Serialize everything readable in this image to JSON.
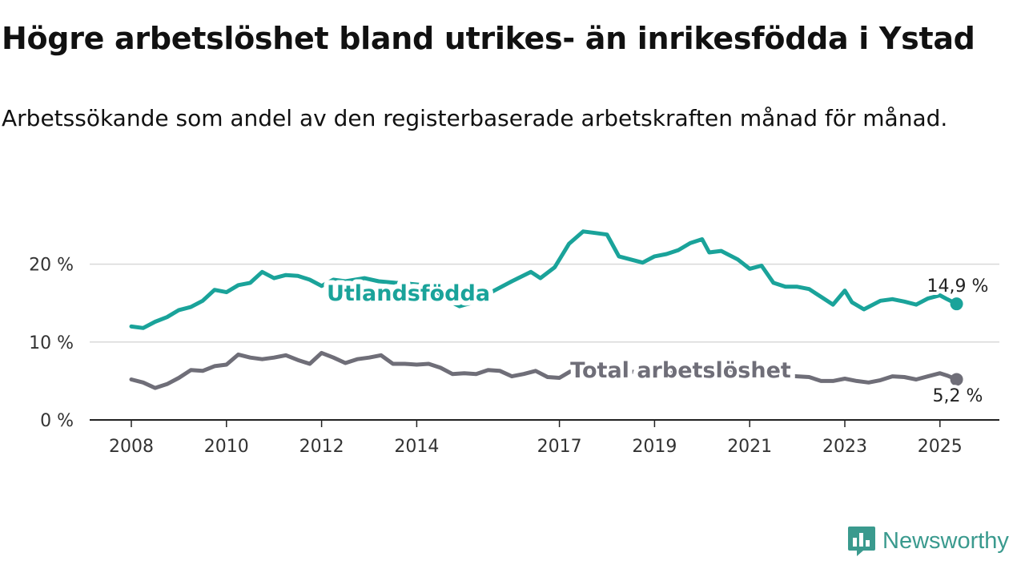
{
  "title": "Högre arbetslöshet bland utrikes- än inrikesfödda i Ystad",
  "subtitle": "Arbetssökande som andel av den registerbaserade arbetskraften månad för månad.",
  "brand": {
    "name": "Newsworthy",
    "icon": "bar-chart-speech-bubble-icon",
    "color": "#3a9a8e"
  },
  "chart_data": {
    "type": "line",
    "xlim": [
      2008,
      2025.7
    ],
    "ylim": [
      0,
      25
    ],
    "x_ticks": [
      "2008",
      "2010",
      "2012",
      "2014",
      "2017",
      "2019",
      "2021",
      "2023",
      "2025"
    ],
    "y_ticks": [
      "0 %",
      "10 %",
      "20 %"
    ],
    "grid": true,
    "series": [
      {
        "name": "Utlandsfödda",
        "color": "#1aa39a",
        "end_label": "14,9 %",
        "points": [
          [
            2008.0,
            12.0
          ],
          [
            2008.25,
            11.8
          ],
          [
            2008.5,
            12.6
          ],
          [
            2008.75,
            13.2
          ],
          [
            2009.0,
            14.1
          ],
          [
            2009.25,
            14.5
          ],
          [
            2009.5,
            15.3
          ],
          [
            2009.75,
            16.7
          ],
          [
            2010.0,
            16.4
          ],
          [
            2010.25,
            17.3
          ],
          [
            2010.5,
            17.6
          ],
          [
            2010.75,
            19.0
          ],
          [
            2011.0,
            18.2
          ],
          [
            2011.25,
            18.6
          ],
          [
            2011.5,
            18.5
          ],
          [
            2011.75,
            18.0
          ],
          [
            2012.0,
            17.2
          ],
          [
            2012.25,
            18.0
          ],
          [
            2012.5,
            17.8
          ],
          [
            2012.9,
            18.2
          ],
          [
            2013.2,
            17.8
          ],
          [
            2013.55,
            17.6
          ],
          [
            2013.8,
            17.5
          ],
          [
            2014.3,
            17.2
          ],
          [
            2014.6,
            15.5
          ],
          [
            2014.9,
            14.6
          ],
          [
            2015.25,
            15.2
          ],
          [
            2015.6,
            16.5
          ],
          [
            2016.0,
            17.8
          ],
          [
            2016.4,
            19.0
          ],
          [
            2016.6,
            18.2
          ],
          [
            2016.9,
            19.6
          ],
          [
            2017.2,
            22.6
          ],
          [
            2017.5,
            24.2
          ],
          [
            2017.75,
            24.0
          ],
          [
            2018.0,
            23.8
          ],
          [
            2018.25,
            21.0
          ],
          [
            2018.5,
            20.6
          ],
          [
            2018.75,
            20.2
          ],
          [
            2019.0,
            21.0
          ],
          [
            2019.25,
            21.3
          ],
          [
            2019.5,
            21.8
          ],
          [
            2019.75,
            22.7
          ],
          [
            2020.0,
            23.2
          ],
          [
            2020.15,
            21.5
          ],
          [
            2020.4,
            21.7
          ],
          [
            2020.75,
            20.6
          ],
          [
            2021.0,
            19.4
          ],
          [
            2021.25,
            19.8
          ],
          [
            2021.5,
            17.6
          ],
          [
            2021.75,
            17.1
          ],
          [
            2022.0,
            17.1
          ],
          [
            2022.25,
            16.8
          ],
          [
            2022.5,
            15.8
          ],
          [
            2022.75,
            14.8
          ],
          [
            2023.0,
            16.6
          ],
          [
            2023.15,
            15.1
          ],
          [
            2023.4,
            14.2
          ],
          [
            2023.75,
            15.3
          ],
          [
            2024.0,
            15.5
          ],
          [
            2024.25,
            15.2
          ],
          [
            2024.5,
            14.8
          ],
          [
            2024.75,
            15.6
          ],
          [
            2025.0,
            16.0
          ],
          [
            2025.15,
            15.5
          ],
          [
            2025.35,
            14.9
          ]
        ]
      },
      {
        "name": "Total arbetslöshet",
        "color": "#6f6e78",
        "end_label": "5,2 %",
        "points": [
          [
            2008.0,
            5.2
          ],
          [
            2008.25,
            4.8
          ],
          [
            2008.5,
            4.1
          ],
          [
            2008.75,
            4.6
          ],
          [
            2009.0,
            5.4
          ],
          [
            2009.25,
            6.4
          ],
          [
            2009.5,
            6.3
          ],
          [
            2009.75,
            6.9
          ],
          [
            2010.0,
            7.1
          ],
          [
            2010.25,
            8.4
          ],
          [
            2010.5,
            8.0
          ],
          [
            2010.75,
            7.8
          ],
          [
            2011.0,
            8.0
          ],
          [
            2011.25,
            8.3
          ],
          [
            2011.5,
            7.7
          ],
          [
            2011.75,
            7.2
          ],
          [
            2012.0,
            8.6
          ],
          [
            2012.25,
            8.0
          ],
          [
            2012.5,
            7.3
          ],
          [
            2012.75,
            7.8
          ],
          [
            2013.0,
            8.0
          ],
          [
            2013.25,
            8.3
          ],
          [
            2013.5,
            7.2
          ],
          [
            2013.75,
            7.2
          ],
          [
            2014.0,
            7.1
          ],
          [
            2014.25,
            7.2
          ],
          [
            2014.5,
            6.7
          ],
          [
            2014.75,
            5.9
          ],
          [
            2015.0,
            6.0
          ],
          [
            2015.25,
            5.9
          ],
          [
            2015.5,
            6.4
          ],
          [
            2015.75,
            6.3
          ],
          [
            2016.0,
            5.6
          ],
          [
            2016.25,
            5.9
          ],
          [
            2016.5,
            6.3
          ],
          [
            2016.75,
            5.5
          ],
          [
            2017.0,
            5.4
          ],
          [
            2017.25,
            6.3
          ],
          [
            2017.5,
            6.7
          ],
          [
            2017.75,
            6.5
          ],
          [
            2018.0,
            6.4
          ],
          [
            2018.5,
            6.2
          ],
          [
            2019.0,
            6.0
          ],
          [
            2019.5,
            6.0
          ],
          [
            2020.0,
            6.4
          ],
          [
            2020.5,
            6.6
          ],
          [
            2021.0,
            6.0
          ],
          [
            2021.5,
            5.8
          ],
          [
            2022.0,
            5.6
          ],
          [
            2022.25,
            5.5
          ],
          [
            2022.5,
            5.0
          ],
          [
            2022.75,
            5.0
          ],
          [
            2023.0,
            5.3
          ],
          [
            2023.25,
            5.0
          ],
          [
            2023.5,
            4.8
          ],
          [
            2023.75,
            5.1
          ],
          [
            2024.0,
            5.6
          ],
          [
            2024.25,
            5.5
          ],
          [
            2024.5,
            5.2
          ],
          [
            2024.75,
            5.6
          ],
          [
            2025.0,
            6.0
          ],
          [
            2025.15,
            5.7
          ],
          [
            2025.35,
            5.2
          ]
        ]
      }
    ]
  }
}
